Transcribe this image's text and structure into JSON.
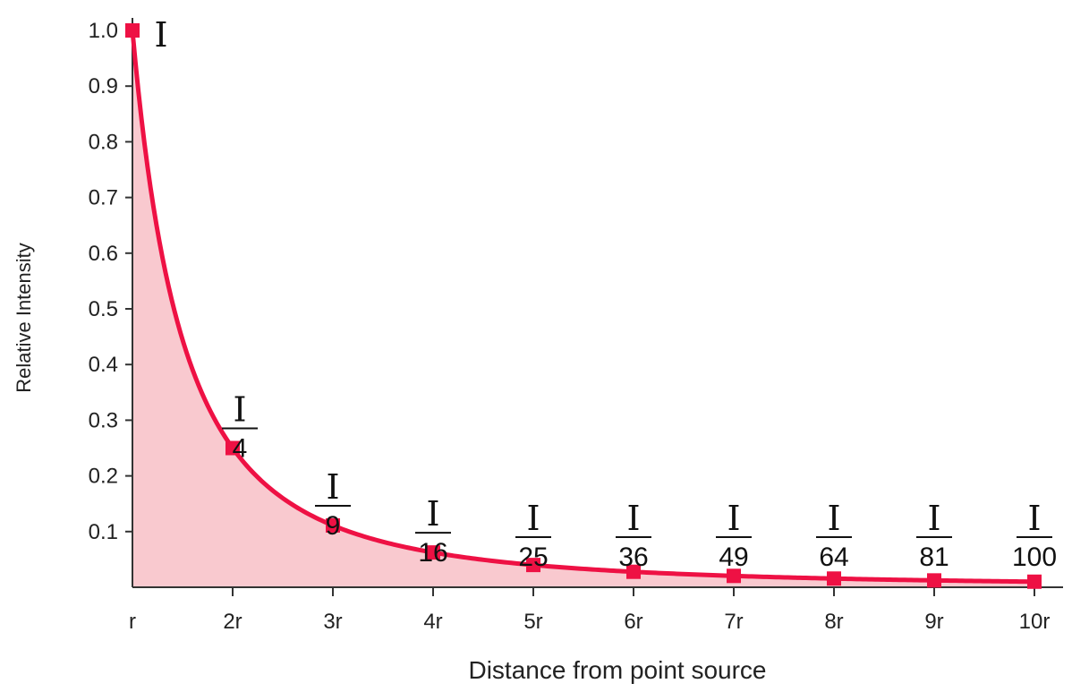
{
  "chart_data": {
    "type": "line",
    "x": [
      "r",
      "2r",
      "3r",
      "4r",
      "5r",
      "6r",
      "7r",
      "8r",
      "9r",
      "10r"
    ],
    "values": [
      1.0,
      0.25,
      0.111,
      0.0625,
      0.04,
      0.0278,
      0.0204,
      0.0156,
      0.0123,
      0.01
    ],
    "y_ticks": [
      "0.1",
      "0.2",
      "0.3",
      "0.4",
      "0.5",
      "0.6",
      "0.7",
      "0.8",
      "0.9",
      "1.0"
    ],
    "ylim": [
      0,
      1.0
    ],
    "xlabel": "Distance from point source",
    "ylabel": "Relative Intensity",
    "point_labels": [
      {
        "numerator": "I",
        "denominator": ""
      },
      {
        "numerator": "I",
        "denominator": "4"
      },
      {
        "numerator": "I",
        "denominator": "9"
      },
      {
        "numerator": "I",
        "denominator": "16"
      },
      {
        "numerator": "I",
        "denominator": "25"
      },
      {
        "numerator": "I",
        "denominator": "36"
      },
      {
        "numerator": "I",
        "denominator": "49"
      },
      {
        "numerator": "I",
        "denominator": "64"
      },
      {
        "numerator": "I",
        "denominator": "81"
      },
      {
        "numerator": "I",
        "denominator": "100"
      }
    ],
    "grid": false,
    "colors": {
      "line": "#ee1144",
      "fill": "#f9c9cf",
      "marker": "#ee1144"
    }
  }
}
